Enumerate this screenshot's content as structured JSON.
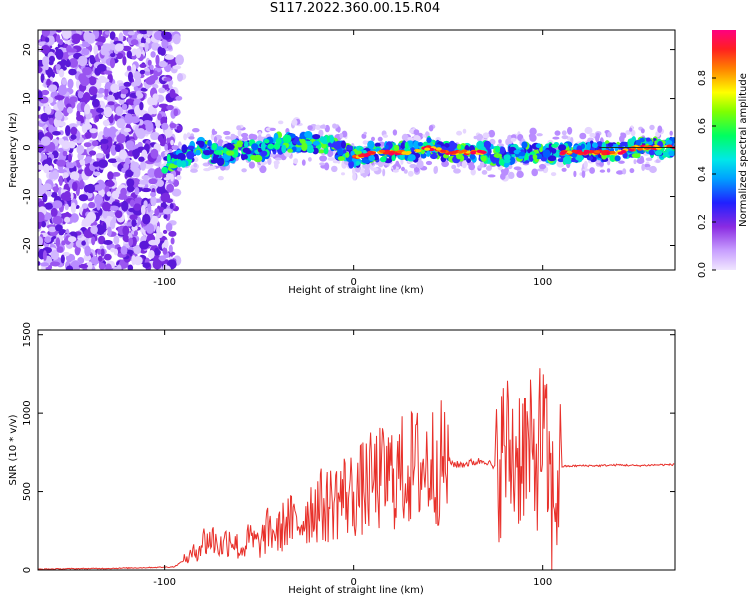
{
  "title": "S117.2022.360.00.15.R04",
  "chart_data": [
    {
      "type": "heatmap",
      "xlabel": "Height of straight line (km)",
      "ylabel": "Frequency (Hz)",
      "xlim": [
        -167,
        170
      ],
      "ylim": [
        -25,
        24
      ],
      "xticks": [
        -100,
        0,
        100
      ],
      "yticks": [
        -20,
        -10,
        0,
        10,
        20
      ],
      "colorbar": {
        "label": "Normalized spectral amplitude",
        "range": [
          0,
          1
        ],
        "ticks": [
          "0.0",
          "0.2",
          "0.4",
          "0.6",
          "0.8"
        ],
        "colormap": [
          "#e8d8ff",
          "#8a2be2",
          "#2020ff",
          "#00c8ff",
          "#00ff80",
          "#80ff00",
          "#ffff00",
          "#ff8000",
          "#ff0040",
          "#ff0080"
        ]
      },
      "line_trace": {
        "name": "frequency ridge",
        "x": [
          -100,
          -90,
          -80,
          -70,
          -60,
          -50,
          -40,
          -30,
          -20,
          -10,
          0,
          10,
          20,
          30,
          40,
          50,
          60,
          70,
          80,
          90,
          100,
          110,
          120,
          130,
          140,
          150,
          160,
          170
        ],
        "y": [
          -3,
          -2,
          0,
          -2,
          0,
          -1,
          1,
          1,
          1,
          0,
          -2,
          -1,
          -1,
          -1,
          0,
          -1,
          -1,
          -1,
          -2,
          -1,
          -1,
          -1,
          -1,
          -1,
          -1,
          0,
          0,
          0
        ]
      }
    },
    {
      "type": "line",
      "xlabel": "Height of straight line (km)",
      "ylabel": "SNR (10 * v/v)",
      "xlim": [
        -167,
        170
      ],
      "ylim": [
        0,
        1530
      ],
      "xticks": [
        -100,
        0,
        100
      ],
      "yticks": [
        0,
        500,
        1000,
        1500
      ],
      "color": "#e8302a",
      "series": [
        {
          "x": [
            -167,
            -150,
            -130,
            -110,
            -95,
            -85,
            -80,
            -75,
            -70,
            -65,
            -60,
            -55,
            -50,
            -45,
            -40,
            -35,
            -30,
            -25,
            -20,
            -15,
            -10,
            -5,
            0,
            5,
            10,
            15,
            20,
            25,
            30,
            35,
            40,
            45,
            50,
            55,
            60,
            65,
            70,
            75,
            80,
            85,
            90,
            95,
            100,
            105,
            110,
            120,
            130,
            140,
            150,
            160,
            170
          ],
          "y": [
            5,
            8,
            10,
            15,
            20,
            100,
            180,
            200,
            150,
            220,
            120,
            200,
            160,
            260,
            230,
            320,
            280,
            360,
            420,
            400,
            450,
            480,
            480,
            520,
            560,
            580,
            600,
            620,
            650,
            660,
            670,
            680,
            690,
            670,
            680,
            690,
            700,
            640,
            780,
            720,
            800,
            650,
            900,
            400,
            660,
            665,
            665,
            670,
            665,
            670,
            672
          ]
        }
      ]
    }
  ]
}
